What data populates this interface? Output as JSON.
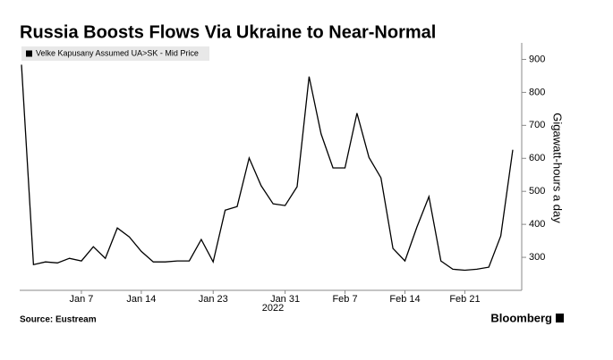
{
  "chart_data": {
    "type": "line",
    "title": "Russia Boosts Flows Via Ukraine to Near-Normal",
    "y_axis_label": "Gigawatt-hours a day",
    "x_axis_year": "2022",
    "source": "Source: Eustream",
    "brand": "Bloomberg",
    "categories": [
      null,
      null,
      null,
      null,
      null,
      "Jan 7",
      null,
      null,
      null,
      null,
      "Jan 14",
      null,
      null,
      null,
      null,
      null,
      "Jan 23",
      null,
      null,
      null,
      null,
      null,
      "Jan 31",
      null,
      null,
      null,
      null,
      "Feb 7",
      null,
      null,
      null,
      null,
      "Feb 14",
      null,
      null,
      null,
      null,
      "Feb 21",
      null,
      null,
      null,
      null
    ],
    "series": [
      {
        "name": "Velke Kapusany Assumed UA>SK - Mid Price",
        "color": "#000000",
        "values": [
          884,
          278,
          286,
          283,
          297,
          289,
          332,
          297,
          389,
          362,
          318,
          286,
          286,
          289,
          289,
          354,
          286,
          443,
          454,
          601,
          517,
          462,
          457,
          514,
          848,
          674,
          571,
          571,
          737,
          603,
          541,
          327,
          289,
          392,
          484,
          289,
          264,
          261,
          264,
          270,
          365,
          626
        ]
      }
    ],
    "ylim": [
      200,
      950
    ],
    "yticks": [
      300,
      400,
      500,
      600,
      700,
      800,
      900
    ],
    "legend": "top-left"
  }
}
